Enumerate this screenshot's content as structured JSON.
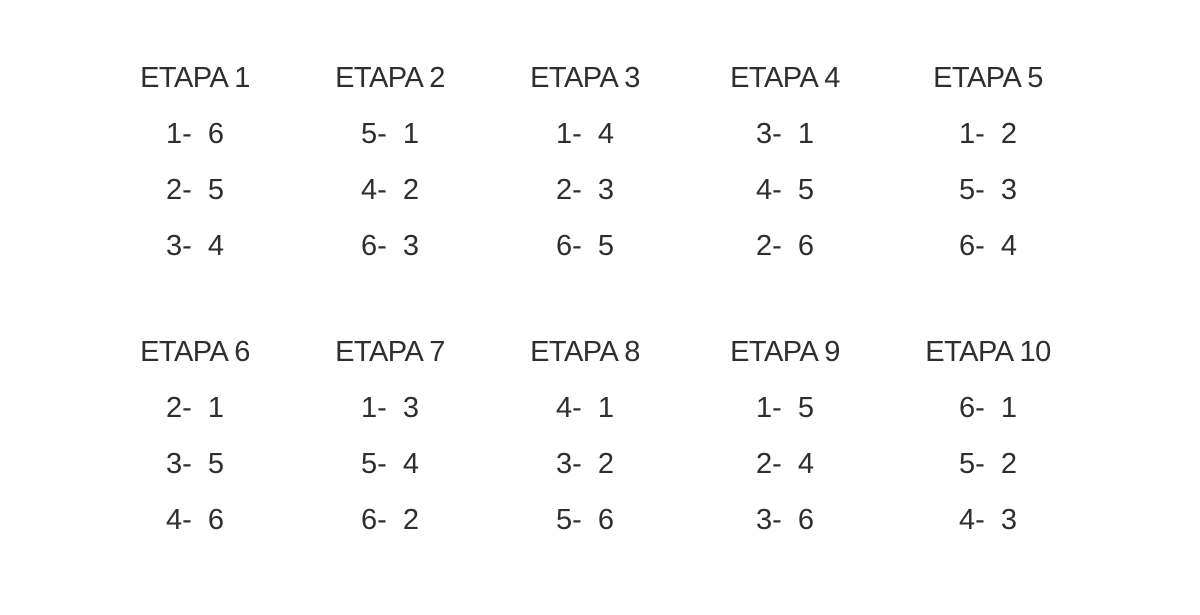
{
  "stages": [
    {
      "title": "ETAPA 1",
      "matches": [
        "1-  6",
        "2-  5",
        "3-  4"
      ]
    },
    {
      "title": "ETAPA 2",
      "matches": [
        "5-  1",
        "4-  2",
        "6-  3"
      ]
    },
    {
      "title": "ETAPA 3",
      "matches": [
        "1-  4",
        "2-  3",
        "6-  5"
      ]
    },
    {
      "title": "ETAPA 4",
      "matches": [
        "3-  1",
        "4-  5",
        "2-  6"
      ]
    },
    {
      "title": "ETAPA 5",
      "matches": [
        "1-  2",
        "5-  3",
        "6-  4"
      ]
    },
    {
      "title": "ETAPA 6",
      "matches": [
        "2-  1",
        "3-  5",
        "4-  6"
      ]
    },
    {
      "title": "ETAPA 7",
      "matches": [
        "1-  3",
        "5-  4",
        "6-  2"
      ]
    },
    {
      "title": "ETAPA 8",
      "matches": [
        "4-  1",
        "3-  2",
        "5-  6"
      ]
    },
    {
      "title": "ETAPA 9",
      "matches": [
        "1-  5",
        "2-  4",
        "3-  6"
      ]
    },
    {
      "title": "ETAPA 10",
      "matches": [
        "6-  1",
        "5-  2",
        "4-  3"
      ]
    }
  ]
}
